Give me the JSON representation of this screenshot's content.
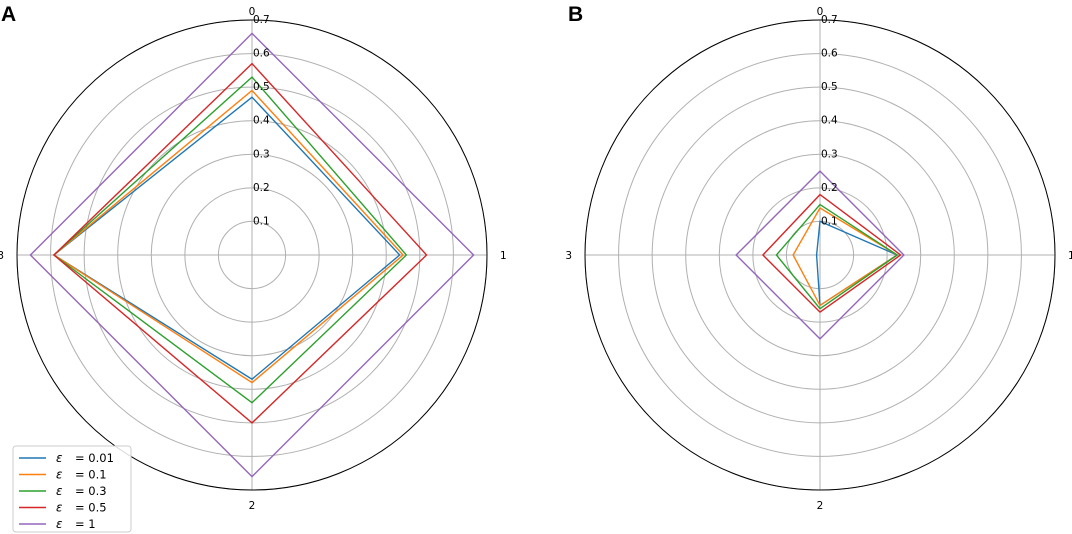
{
  "chart_data": [
    {
      "type": "radar",
      "panel_label": "A",
      "axes": [
        "0",
        "1",
        "2",
        "3"
      ],
      "rticks": [
        "0.1",
        "0.2",
        "0.3",
        "0.4",
        "0.5",
        "0.6",
        "0.7"
      ],
      "rlim": [
        0,
        0.7
      ],
      "grid": true,
      "series": [
        {
          "name": "ε = 0.01",
          "color": "#1f77b4",
          "values": [
            0.47,
            0.44,
            0.37,
            0.59
          ]
        },
        {
          "name": "ε = 0.1",
          "color": "#ff7f0e",
          "values": [
            0.49,
            0.45,
            0.38,
            0.59
          ]
        },
        {
          "name": "ε = 0.3",
          "color": "#2ca02c",
          "values": [
            0.53,
            0.46,
            0.44,
            0.59
          ]
        },
        {
          "name": "ε = 0.5",
          "color": "#d62728",
          "values": [
            0.57,
            0.52,
            0.5,
            0.59
          ]
        },
        {
          "name": "ε = 1",
          "color": "#9467bd",
          "values": [
            0.66,
            0.66,
            0.66,
            0.66
          ]
        }
      ],
      "legend": {
        "placement": "lower-left",
        "entries": [
          {
            "symbol": "ε",
            "text": "= 0.01",
            "color": "#1f77b4"
          },
          {
            "symbol": "ε",
            "text": "= 0.1",
            "color": "#ff7f0e"
          },
          {
            "symbol": "ε",
            "text": "= 0.3",
            "color": "#2ca02c"
          },
          {
            "symbol": "ε",
            "text": "= 0.5",
            "color": "#d62728"
          },
          {
            "symbol": "ε",
            "text": "= 1",
            "color": "#9467bd"
          }
        ]
      }
    },
    {
      "type": "radar",
      "panel_label": "B",
      "axes": [
        "0",
        "1",
        "2",
        "3"
      ],
      "rticks": [
        "0.1",
        "0.2",
        "0.3",
        "0.4",
        "0.5",
        "0.6",
        "0.7"
      ],
      "rlim": [
        0,
        0.7
      ],
      "grid": true,
      "series": [
        {
          "name": "ε = 0.01",
          "color": "#1f77b4",
          "values": [
            0.1,
            0.23,
            0.15,
            0.01
          ]
        },
        {
          "name": "ε = 0.1",
          "color": "#ff7f0e",
          "values": [
            0.14,
            0.23,
            0.15,
            0.08
          ]
        },
        {
          "name": "ε = 0.3",
          "color": "#2ca02c",
          "values": [
            0.15,
            0.23,
            0.16,
            0.13
          ]
        },
        {
          "name": "ε = 0.5",
          "color": "#d62728",
          "values": [
            0.18,
            0.24,
            0.17,
            0.17
          ]
        },
        {
          "name": "ε = 1",
          "color": "#9467bd",
          "values": [
            0.25,
            0.25,
            0.25,
            0.25
          ]
        }
      ]
    }
  ]
}
